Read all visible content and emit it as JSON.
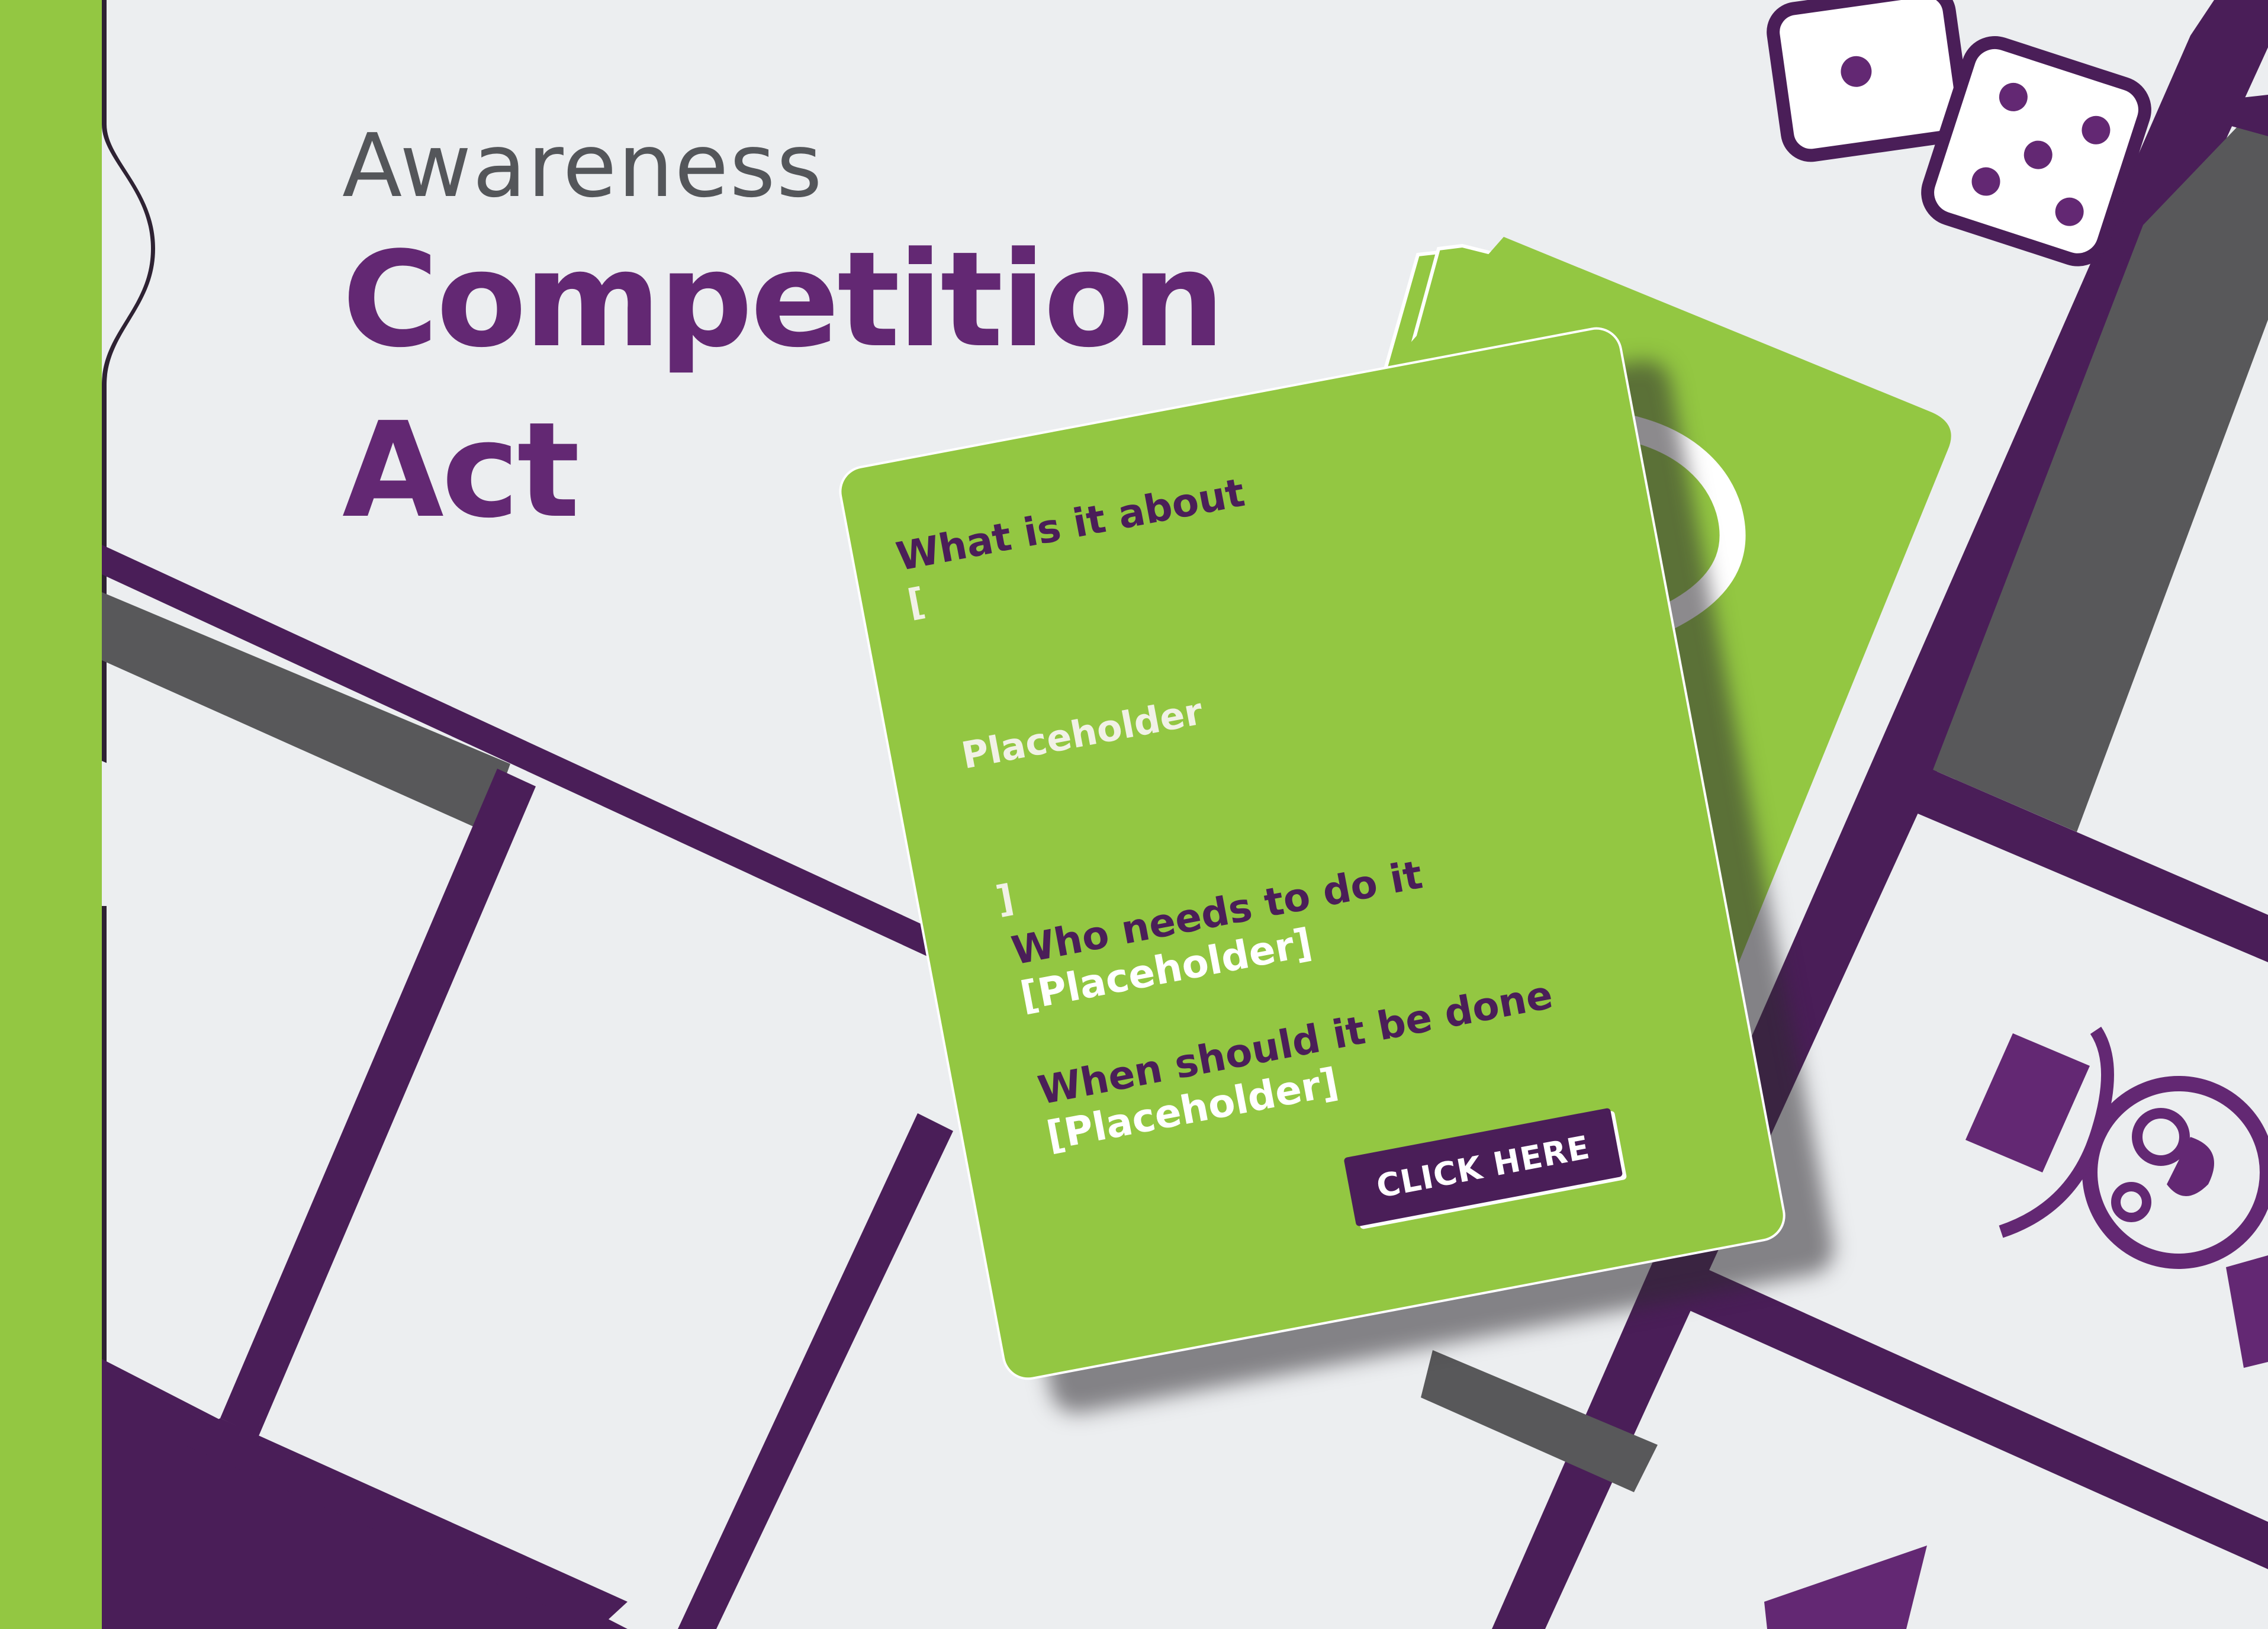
{
  "title": {
    "subtitle": "Awareness",
    "line1": "Competition",
    "line2": "Act"
  },
  "card": {
    "q1_label": "What is it about",
    "q1_open_bracket": "[",
    "q1_value": "Placeholder",
    "q1_close_bracket": "]",
    "q2_label": "Who needs to do it",
    "q2_value": "[Placeholder]",
    "q3_label": "When should it be done",
    "q3_value": "[Placeholder]",
    "button_label": "CLICK HERE"
  },
  "colors": {
    "accent_green": "#93c742",
    "brand_purple": "#632873",
    "dark_purple": "#4a1e58",
    "board_grey": "#58585a",
    "background": "#eceef0"
  },
  "icons": [
    "dice-icon",
    "question-mark-icon",
    "top-hat-icon",
    "arrow-icon"
  ]
}
